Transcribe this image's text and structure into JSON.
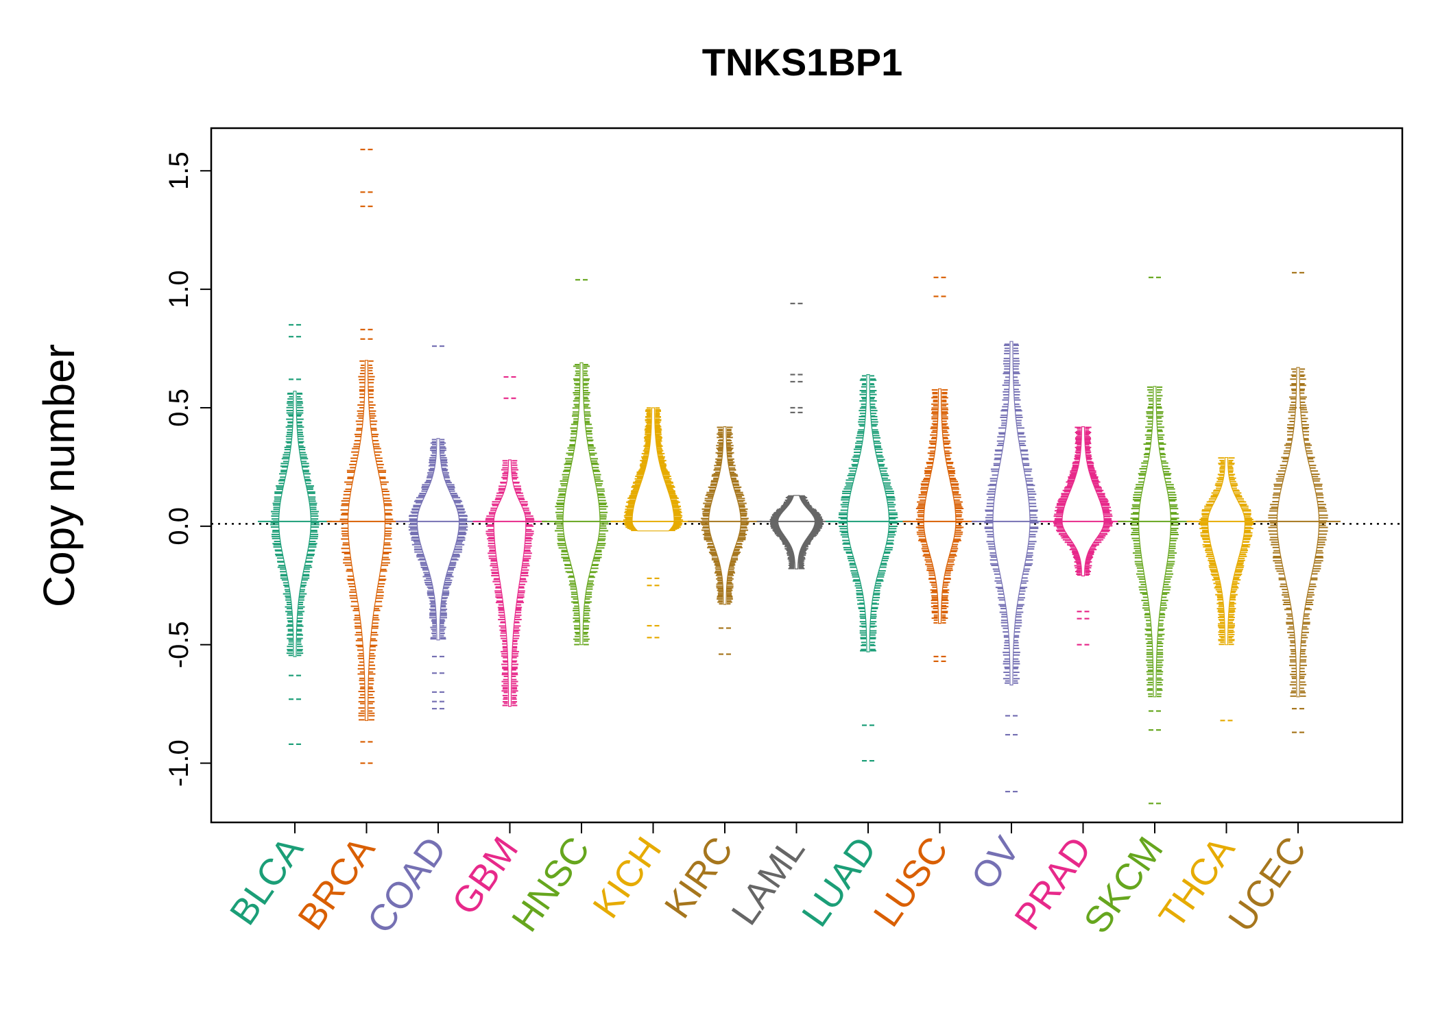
{
  "chart_data": {
    "type": "beanplot",
    "title": "TNKS1BP1",
    "xlabel": "",
    "ylabel": "Copy number",
    "ylim": [
      -1.25,
      1.68
    ],
    "yticks": [
      -1.0,
      -0.5,
      0.0,
      0.5,
      1.0,
      1.5
    ],
    "ytick_labels": [
      "-1.0",
      "-0.5",
      "0.0",
      "0.5",
      "1.0",
      "1.5"
    ],
    "reference_line": 0.01,
    "categories": [
      "BLCA",
      "BRCA",
      "COAD",
      "GBM",
      "HNSC",
      "KICH",
      "KIRC",
      "LAML",
      "LUAD",
      "LUSC",
      "OV",
      "PRAD",
      "SKCM",
      "THCA",
      "UCEC"
    ],
    "colors": [
      "#1B9E77",
      "#D95F02",
      "#7570B3",
      "#E7298A",
      "#66A61E",
      "#E6AB02",
      "#A6761D",
      "#666666",
      "#1B9E77",
      "#D95F02",
      "#7570B3",
      "#E7298A",
      "#66A61E",
      "#E6AB02",
      "#A6761D"
    ],
    "series": [
      {
        "category": "BLCA",
        "min": -0.55,
        "max": 0.57,
        "outliers": [
          0.85,
          0.8,
          0.62,
          -0.63,
          -0.73,
          -0.92
        ]
      },
      {
        "category": "BRCA",
        "min": -0.82,
        "max": 0.7,
        "outliers": [
          1.59,
          1.41,
          1.35,
          0.83,
          0.79,
          -0.91,
          -1.0
        ]
      },
      {
        "category": "COAD",
        "min": -0.48,
        "max": 0.37,
        "outliers": [
          0.76,
          -0.55,
          -0.62,
          -0.7,
          -0.74,
          -0.77
        ]
      },
      {
        "category": "GBM",
        "min": -0.76,
        "max": 0.28,
        "outliers": [
          0.63,
          0.54
        ]
      },
      {
        "category": "HNSC",
        "min": -0.5,
        "max": 0.69,
        "outliers": [
          1.04
        ]
      },
      {
        "category": "KICH",
        "min": -0.02,
        "max": 0.5,
        "outliers": [
          -0.22,
          -0.25,
          -0.42,
          -0.47
        ]
      },
      {
        "category": "KIRC",
        "min": -0.33,
        "max": 0.42,
        "outliers": [
          -0.43,
          -0.54
        ]
      },
      {
        "category": "LAML",
        "min": -0.18,
        "max": 0.13,
        "outliers": [
          0.94,
          0.64,
          0.61,
          0.5,
          0.48
        ]
      },
      {
        "category": "LUAD",
        "min": -0.53,
        "max": 0.64,
        "outliers": [
          -0.84,
          -0.99
        ]
      },
      {
        "category": "LUSC",
        "min": -0.41,
        "max": 0.58,
        "outliers": [
          1.05,
          0.97,
          -0.55,
          -0.57
        ]
      },
      {
        "category": "OV",
        "min": -0.67,
        "max": 0.78,
        "outliers": [
          -0.8,
          -0.88,
          -1.12
        ]
      },
      {
        "category": "PRAD",
        "min": -0.21,
        "max": 0.42,
        "outliers": [
          -0.36,
          -0.39,
          -0.5
        ]
      },
      {
        "category": "SKCM",
        "min": -0.72,
        "max": 0.59,
        "outliers": [
          1.05,
          -0.78,
          -0.86,
          -1.17
        ]
      },
      {
        "category": "THCA",
        "min": -0.5,
        "max": 0.29,
        "outliers": [
          -0.82
        ]
      },
      {
        "category": "UCEC",
        "min": -0.72,
        "max": 0.67,
        "outliers": [
          1.07,
          0.6,
          0.5,
          -0.77,
          -0.87
        ]
      }
    ]
  }
}
